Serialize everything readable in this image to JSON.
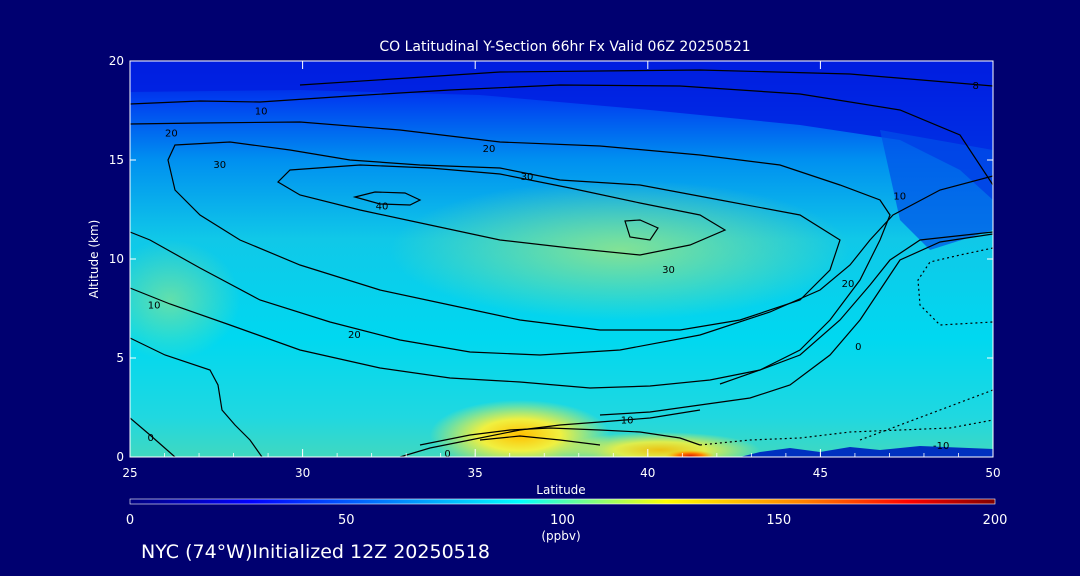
{
  "footer": "NYC (74°W)Initialized 12Z 20250518",
  "colors": {
    "background": "#000070",
    "text": "#ffffff",
    "contour": "#000000"
  },
  "chart_data": {
    "type": "heatmap",
    "title": "CO Latitudinal Y-Section 66hr  Fx Valid 06Z 20250521",
    "xlabel": "Latitude",
    "ylabel": "Altitude (km)",
    "xlim": [
      25,
      50
    ],
    "ylim": [
      0,
      20
    ],
    "x_ticks": [
      "25",
      "30",
      "35",
      "40",
      "45",
      "50"
    ],
    "y_ticks": [
      "0",
      "5",
      "10",
      "15",
      "20"
    ],
    "colorbar": {
      "range": [
        0,
        200
      ],
      "ticks": [
        "0",
        "50",
        "100",
        "150",
        "200"
      ],
      "label": "(ppbv)",
      "colorscale": [
        "#000080",
        "#0000ff",
        "#0080ff",
        "#00ffff",
        "#ffff00",
        "#ff8000",
        "#ff0000",
        "#800000"
      ]
    },
    "contour_labels": [
      {
        "text": "10",
        "lat": 28.8,
        "alt": 17.5
      },
      {
        "text": "20",
        "lat": 26.2,
        "alt": 16.4
      },
      {
        "text": "20",
        "lat": 35.4,
        "alt": 15.6
      },
      {
        "text": "30",
        "lat": 27.6,
        "alt": 14.8
      },
      {
        "text": "30",
        "lat": 36.5,
        "alt": 14.2
      },
      {
        "text": "40",
        "lat": 32.3,
        "alt": 12.7
      },
      {
        "text": "30",
        "lat": 40.6,
        "alt": 9.5
      },
      {
        "text": "20",
        "lat": 45.8,
        "alt": 8.8
      },
      {
        "text": "10",
        "lat": 25.7,
        "alt": 7.7
      },
      {
        "text": "20",
        "lat": 31.5,
        "alt": 6.2
      },
      {
        "text": "0",
        "lat": 46.1,
        "alt": 5.6
      },
      {
        "text": "10",
        "lat": 39.4,
        "alt": 1.9
      },
      {
        "text": "0",
        "lat": 25.6,
        "alt": 1.0
      },
      {
        "text": "0",
        "lat": 34.2,
        "alt": 0.2
      },
      {
        "text": "-10",
        "lat": 48.5,
        "alt": 0.6
      },
      {
        "text": "8",
        "lat": 49.5,
        "alt": 18.8
      },
      {
        "text": "10",
        "lat": 47.3,
        "alt": 13.2
      }
    ]
  }
}
